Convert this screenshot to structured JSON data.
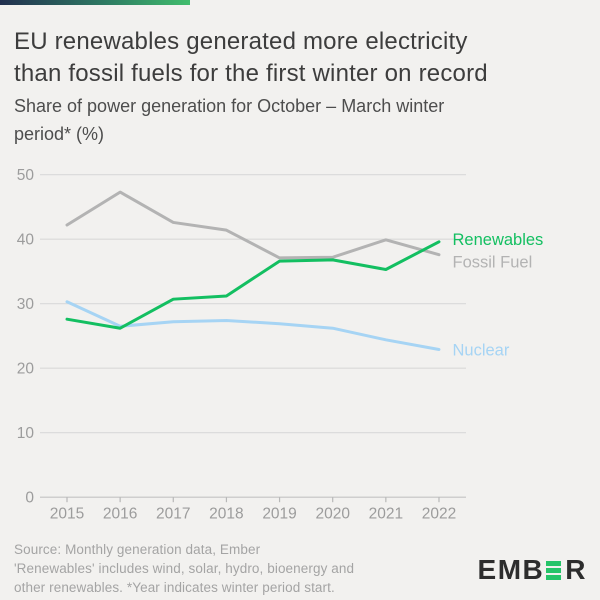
{
  "brand": {
    "accent_gradient_start": "#22304f",
    "accent_gradient_end": "#41bd6d"
  },
  "header": {
    "title": "EU renewables generated more electricity\nthan fossil fuels for the first winter on record",
    "subtitle": "Share of power generation for October – March winter\nperiod* (%)"
  },
  "chart_data": {
    "type": "line",
    "title": "EU renewables generated more electricity than fossil fuels for the first winter on record",
    "subtitle": "Share of power generation for October – March winter period* (%)",
    "unit": "%",
    "x": [
      "2015",
      "2016",
      "2017",
      "2018",
      "2019",
      "2020",
      "2021",
      "2022"
    ],
    "ylim": [
      0,
      50
    ],
    "yticks": [
      0,
      10,
      20,
      30,
      40,
      50
    ],
    "grid": true,
    "legend_position": "right-of-line-ends",
    "series": [
      {
        "name": "Fossil Fuel",
        "color": "#b3b3b3",
        "values": [
          42.2,
          47.3,
          42.6,
          41.4,
          37.1,
          37.2,
          39.9,
          37.6
        ],
        "label_dy": 7,
        "label_weight": 400
      },
      {
        "name": "Nuclear",
        "color": "#a6d4f4",
        "values": [
          30.3,
          26.5,
          27.2,
          27.4,
          26.9,
          26.2,
          24.4,
          22.9
        ],
        "label_dy": 0,
        "label_weight": 400
      },
      {
        "name": "Renewables",
        "color": "#13bf61",
        "values": [
          27.6,
          26.2,
          30.7,
          31.2,
          36.6,
          36.8,
          35.3,
          39.6
        ],
        "label_dy": -3,
        "label_weight": 500
      }
    ]
  },
  "footer": {
    "source_lines": [
      "Source: Monthly generation data, Ember",
      "'Renewables' includes wind, solar, hydro, bioenergy and",
      "other renewables. *Year indicates winter period start."
    ],
    "logo": {
      "prefix": "EMB",
      "suffix": "R"
    }
  }
}
